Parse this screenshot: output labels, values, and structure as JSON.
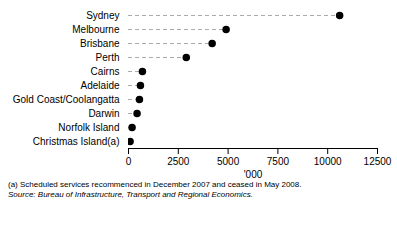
{
  "chart_data": {
    "type": "lollipop",
    "orientation": "horizontal",
    "categories": [
      "Sydney",
      "Melbourne",
      "Brisbane",
      "Perth",
      "Cairns",
      "Adelaide",
      "Gold Coast/Coolangatta",
      "Darwin",
      "Norfolk Island",
      "Christmas Island(a)"
    ],
    "values": [
      10600,
      4900,
      4200,
      2900,
      700,
      600,
      550,
      430,
      180,
      80
    ],
    "color": "#000000",
    "marker": "circle",
    "line_style": "dashed",
    "xlabel": "'000",
    "xlim": [
      0,
      12500
    ],
    "xticks": [
      0,
      2500,
      5000,
      7500,
      10000,
      12500
    ],
    "grid": false,
    "annotations": [
      "(a) Scheduled services recommenced in December 2007 and ceased in May 2008.",
      "Source:  Bureau of Infrastructure, Transport and Regional Economics."
    ]
  }
}
